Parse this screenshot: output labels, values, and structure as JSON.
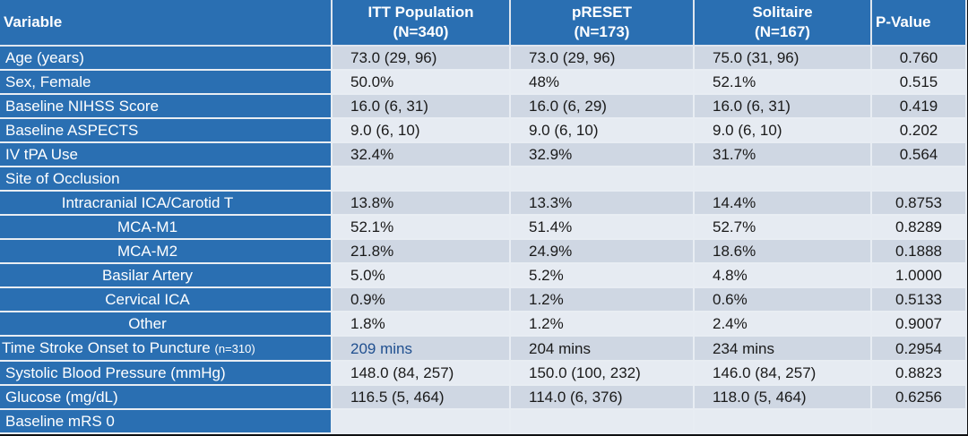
{
  "header": {
    "variable": "Variable",
    "itt_title": "ITT Population",
    "itt_n": "(N=340)",
    "preset_title": "pRESET",
    "preset_n": "(N=173)",
    "solitaire_title": "Solitaire",
    "solitaire_n": "(N=167)",
    "pvalue": "P-Value"
  },
  "rows": [
    {
      "label": "Age (years)",
      "itt": "73.0 (29, 96)",
      "preset": "73.0 (29, 96)",
      "solitaire": "75.0 (31, 96)",
      "p": "0.760"
    },
    {
      "label": "Sex, Female",
      "itt": "50.0%",
      "preset": "48%",
      "solitaire": "52.1%",
      "p": "0.515"
    },
    {
      "label": "Baseline NIHSS Score",
      "itt": "16.0 (6, 31)",
      "preset": "16.0 (6, 29)",
      "solitaire": "16.0 (6, 31)",
      "p": "0.419"
    },
    {
      "label": "Baseline ASPECTS",
      "itt": "9.0 (6, 10)",
      "preset": "9.0 (6, 10)",
      "solitaire": "9.0 (6, 10)",
      "p": "0.202"
    },
    {
      "label": "IV tPA Use",
      "itt": "32.4%",
      "preset": "32.9%",
      "solitaire": "31.7%",
      "p": "0.564"
    },
    {
      "label": "Site of Occlusion",
      "itt": "",
      "preset": "",
      "solitaire": "",
      "p": ""
    },
    {
      "label": "Intracranial ICA/Carotid T",
      "itt": "13.8%",
      "preset": "13.3%",
      "solitaire": "14.4%",
      "p": "0.8753"
    },
    {
      "label": "MCA-M1",
      "itt": "52.1%",
      "preset": "51.4%",
      "solitaire": "52.7%",
      "p": "0.8289"
    },
    {
      "label": "MCA-M2",
      "itt": "21.8%",
      "preset": "24.9%",
      "solitaire": "18.6%",
      "p": "0.1888"
    },
    {
      "label": "Basilar Artery",
      "itt": "5.0%",
      "preset": "5.2%",
      "solitaire": "4.8%",
      "p": "1.0000"
    },
    {
      "label": "Cervical ICA",
      "itt": "0.9%",
      "preset": "1.2%",
      "solitaire": "0.6%",
      "p": "0.5133"
    },
    {
      "label": "Other",
      "itt": "1.8%",
      "preset": "1.2%",
      "solitaire": "2.4%",
      "p": "0.9007"
    },
    {
      "label": "Time Stroke Onset to Puncture",
      "label_small": "(n=310)",
      "itt": "209 mins",
      "preset": "204 mins",
      "solitaire": "234 mins",
      "p": "0.2954"
    },
    {
      "label": "Systolic Blood Pressure (mmHg)",
      "itt": "148.0 (84, 257)",
      "preset": "150.0 (100, 232)",
      "solitaire": "146.0 (84, 257)",
      "p": "0.8823"
    },
    {
      "label": "Glucose (mg/dL)",
      "itt": "116.5 (5, 464)",
      "preset": "114.0 (6, 376)",
      "solitaire": "118.0 (5, 464)",
      "p": "0.6256"
    },
    {
      "label": "Baseline mRS 0",
      "itt": "",
      "preset": "",
      "solitaire": "",
      "p": ""
    }
  ]
}
